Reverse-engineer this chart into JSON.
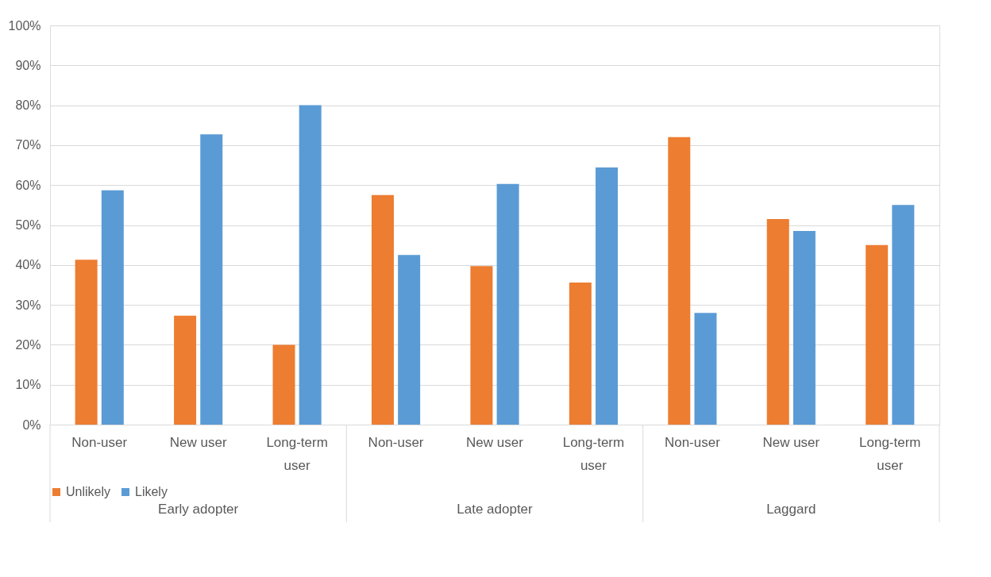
{
  "chart_data": {
    "type": "bar",
    "categories": [
      "Non-user",
      "New user",
      "Long-term user",
      "Non-user",
      "New user",
      "Long-term user",
      "Non-user",
      "New user",
      "Long-term user"
    ],
    "annotations": [
      "Early adopter",
      "Late adopter",
      "Laggard"
    ],
    "series": [
      {
        "name": "Unlikely",
        "color": "#ed7d31",
        "values": [
          41.3,
          27.3,
          20,
          57.5,
          39.7,
          35.6,
          72,
          51.5,
          45
        ]
      },
      {
        "name": "Likely",
        "color": "#5b9bd5",
        "values": [
          58.7,
          72.7,
          80,
          42.5,
          60.3,
          64.4,
          28,
          48.5,
          55
        ]
      }
    ],
    "ylim": [
      0,
      100
    ],
    "yticks": [
      {
        "value": 0,
        "label": "0%"
      },
      {
        "value": 10,
        "label": "10%"
      },
      {
        "value": 20,
        "label": "20%"
      },
      {
        "value": 30,
        "label": "30%"
      },
      {
        "value": 40,
        "label": "40%"
      },
      {
        "value": 50,
        "label": "50%"
      },
      {
        "value": 60,
        "label": "60%"
      },
      {
        "value": 70,
        "label": "70%"
      },
      {
        "value": 80,
        "label": "80%"
      },
      {
        "value": 90,
        "label": "90%"
      },
      {
        "value": 100,
        "label": "100%"
      }
    ],
    "grid": "y",
    "legend": "bottom"
  }
}
